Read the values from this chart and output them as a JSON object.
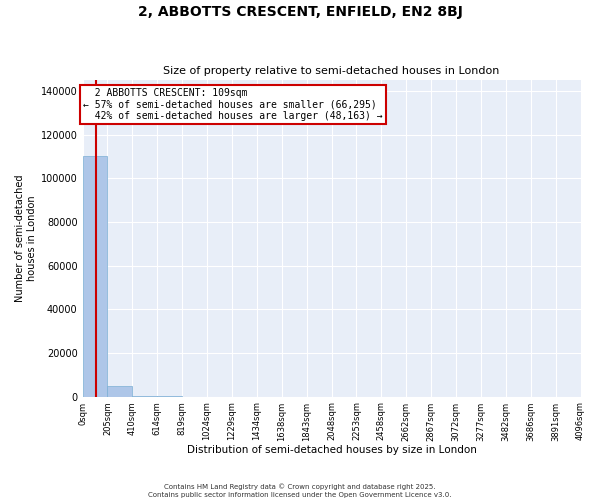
{
  "title1": "2, ABBOTTS CRESCENT, ENFIELD, EN2 8BJ",
  "title2": "Size of property relative to semi-detached houses in London",
  "property_size": 109,
  "property_label": "2 ABBOTTS CRESCENT: 109sqm",
  "pct_smaller": 57,
  "pct_larger": 42,
  "n_smaller": 66295,
  "n_larger": 48163,
  "xlabel": "Distribution of semi-detached houses by size in London",
  "ylabel": "Number of semi-detached\nhouses in London",
  "footer": "Contains HM Land Registry data © Crown copyright and database right 2025.\nContains public sector information licensed under the Open Government Licence v3.0.",
  "bar_color": "#aec6e8",
  "bar_edge_color": "#7bafd4",
  "vline_color": "#cc0000",
  "background_color": "#e8eef8",
  "bins": [
    0,
    205,
    410,
    614,
    819,
    1024,
    1229,
    1434,
    1638,
    1843,
    2048,
    2253,
    2458,
    2662,
    2867,
    3072,
    3277,
    3482,
    3686,
    3891,
    4096
  ],
  "bin_labels": [
    "0sqm",
    "205sqm",
    "410sqm",
    "614sqm",
    "819sqm",
    "1024sqm",
    "1229sqm",
    "1434sqm",
    "1638sqm",
    "1843sqm",
    "2048sqm",
    "2253sqm",
    "2458sqm",
    "2662sqm",
    "2867sqm",
    "3072sqm",
    "3277sqm",
    "3482sqm",
    "3686sqm",
    "3891sqm",
    "4096sqm"
  ],
  "bar_heights": [
    110000,
    4800,
    300,
    80,
    30,
    12,
    6,
    3,
    2,
    1,
    1,
    0,
    0,
    0,
    0,
    0,
    0,
    0,
    0,
    0
  ],
  "ylim": [
    0,
    145000
  ],
  "yticks": [
    0,
    20000,
    40000,
    60000,
    80000,
    100000,
    120000,
    140000
  ]
}
